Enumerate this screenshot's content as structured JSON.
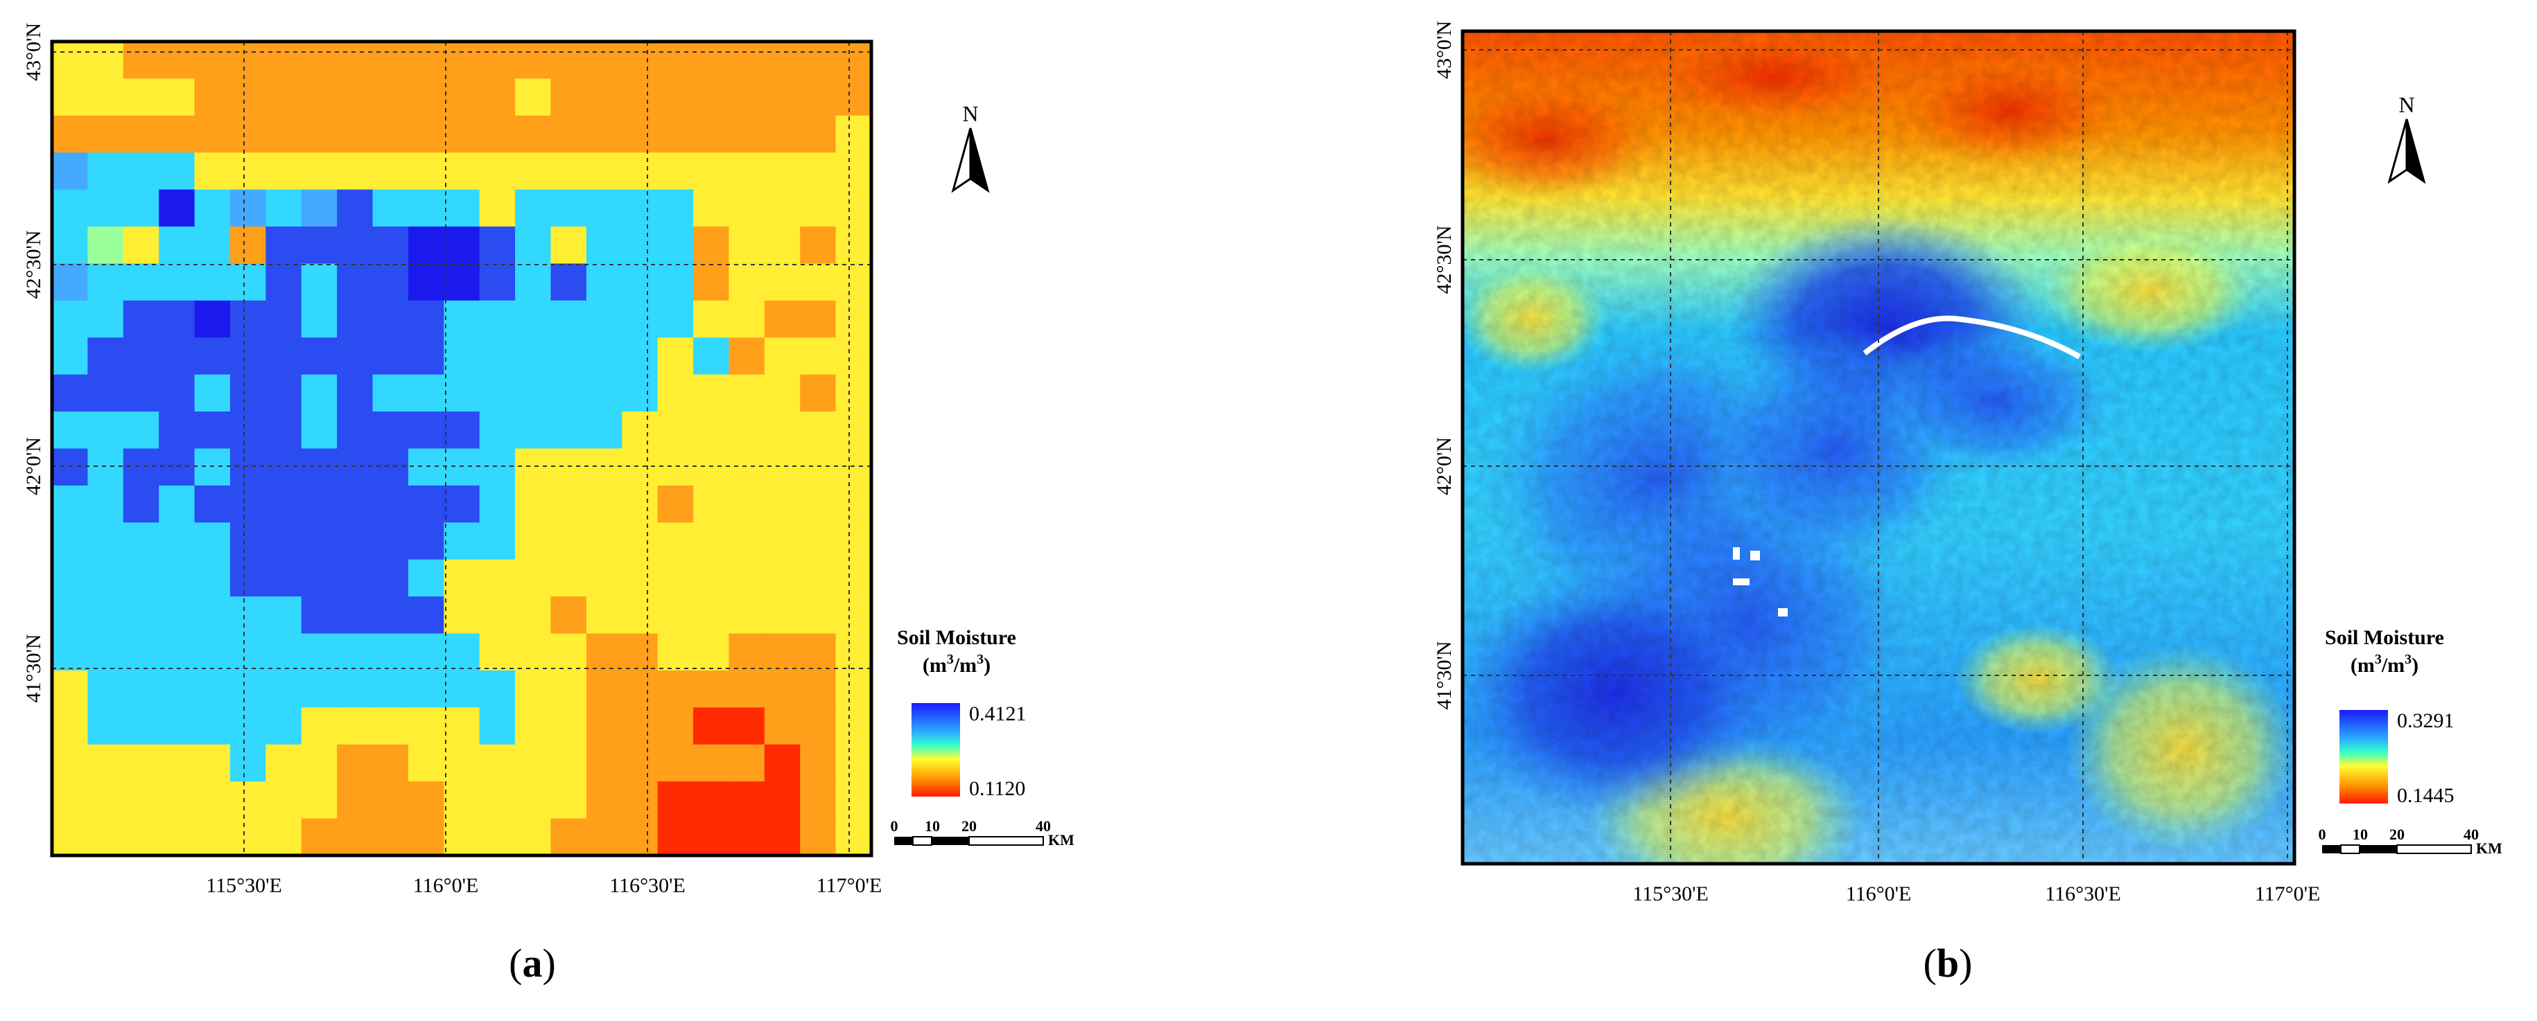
{
  "panels": [
    {
      "id": "a",
      "label_open": "(",
      "label_letter": "a",
      "label_close": ")",
      "lat_labels": [
        "43°0'N",
        "42°30'N",
        "42°0'N",
        "41°30'N"
      ],
      "lon_labels": [
        "115°30'E",
        "116°0'E",
        "116°30'E",
        "117°0'E"
      ],
      "north_letter": "N",
      "legend_title": "Soil Moisture",
      "legend_unit_base": "(m",
      "legend_unit_exp1": "3",
      "legend_unit_mid": "/m",
      "legend_unit_exp2": "3",
      "legend_unit_end": ")",
      "legend_max": "0.4121",
      "legend_min": "0.1120",
      "scale_ticks": [
        "0",
        "10",
        "20",
        "40"
      ],
      "scale_unit": "KM"
    },
    {
      "id": "b",
      "label_open": "(",
      "label_letter": "b",
      "label_close": ")",
      "lat_labels": [
        "43°0'N",
        "42°30'N",
        "42°0'N",
        "41°30'N"
      ],
      "lon_labels": [
        "115°30'E",
        "116°0'E",
        "116°30'E",
        "117°0'E"
      ],
      "north_letter": "N",
      "legend_title": "Soil Moisture",
      "legend_unit_base": "(m",
      "legend_unit_exp1": "3",
      "legend_unit_mid": "/m",
      "legend_unit_exp2": "3",
      "legend_unit_end": ")",
      "legend_max": "0.3291",
      "legend_min": "0.1445",
      "scale_ticks": [
        "0",
        "10",
        "20",
        "40"
      ],
      "scale_unit": "KM"
    }
  ],
  "colors": {
    "blue": "#1a1aff",
    "cyan": "#33ddff",
    "yellow": "#ffff33",
    "orange": "#ff9900",
    "red": "#ff1a00",
    "frame": "#000000",
    "grid": "#333333"
  },
  "grid_a": [
    "YYOOOOOOOOOOOOOOOOOOOOO",
    "YYYYOOOOOOOOOYOOOOOOOOO",
    "OOOOOOOOOOOOOOOOOOOOOOY",
    "cCCCYYYYYYYYYYYYYYYYYYY",
    "CCCbCcCcBCCCYCCCCCYYYYY",
    "CyYCCOBBBBbbBCYCCCOYYOY",
    "cCCCCCBCBBbbBCBCCCOYYYY",
    "CCBBbBBCBBBCCCCCCCYYOOY",
    "CBBBBBBBBBBCCCCCCYCOYYY",
    "BBBBCBBCBCCCCCCCCYYYYOY",
    "CCCBBBBCBBBBCCCCYYYYYYY",
    "BCBBCBBBBBCCCYYYYYYYYYY",
    "CCBCBBBBBBBBCYYYYOYYYYY",
    "CCCCCBBBBBBCCYYYYYYYYYY",
    "CCCCCBBBBBCYYYYYYYYYYYY",
    "CCCCCCCBBBBYYYOYYYYYYYY",
    "CCCCCCCCCCCCYYYOOYYOOOY",
    "YCCCCCCCCCCCCYYOOOOOOOY",
    "YCCCCCCYYYYYCYYOOORROOY",
    "YYYYYCYYOOYYYYYOOOOOROY",
    "YYYYYYYYOOOYYYYOORRRROY",
    "YYYYYYYOOOOYYYOOORRRROY"
  ]
}
